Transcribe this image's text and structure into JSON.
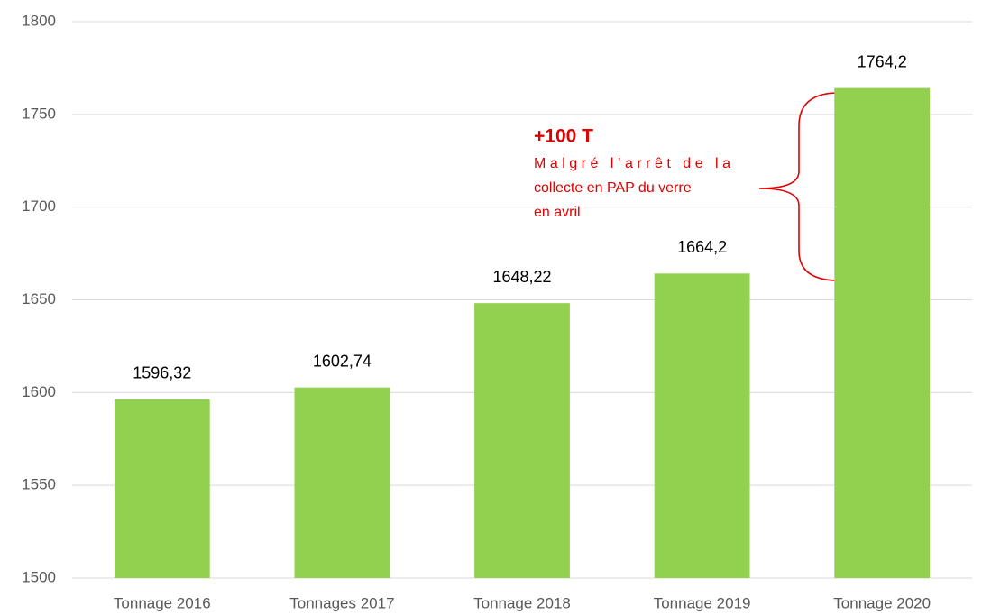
{
  "chart_data": {
    "type": "bar",
    "categories": [
      "Tonnage 2016",
      "Tonnages 2017",
      "Tonnage 2018",
      "Tonnage 2019",
      "Tonnage 2020"
    ],
    "values": [
      1596.32,
      1602.74,
      1648.22,
      1664.2,
      1764.2
    ],
    "value_labels": [
      "1596,32",
      "1602,74",
      "1648,22",
      "1664,2",
      "1764,2"
    ],
    "color": "#92d050",
    "ylim": [
      1500,
      1800
    ],
    "yticks": [
      1500,
      1550,
      1600,
      1650,
      1700,
      1750,
      1800
    ],
    "grid": true,
    "annotation": {
      "title": "+100 T",
      "lines": [
        "Malgré l’arrêt de la",
        "collecte en PAP du verre",
        "en avril"
      ]
    }
  }
}
